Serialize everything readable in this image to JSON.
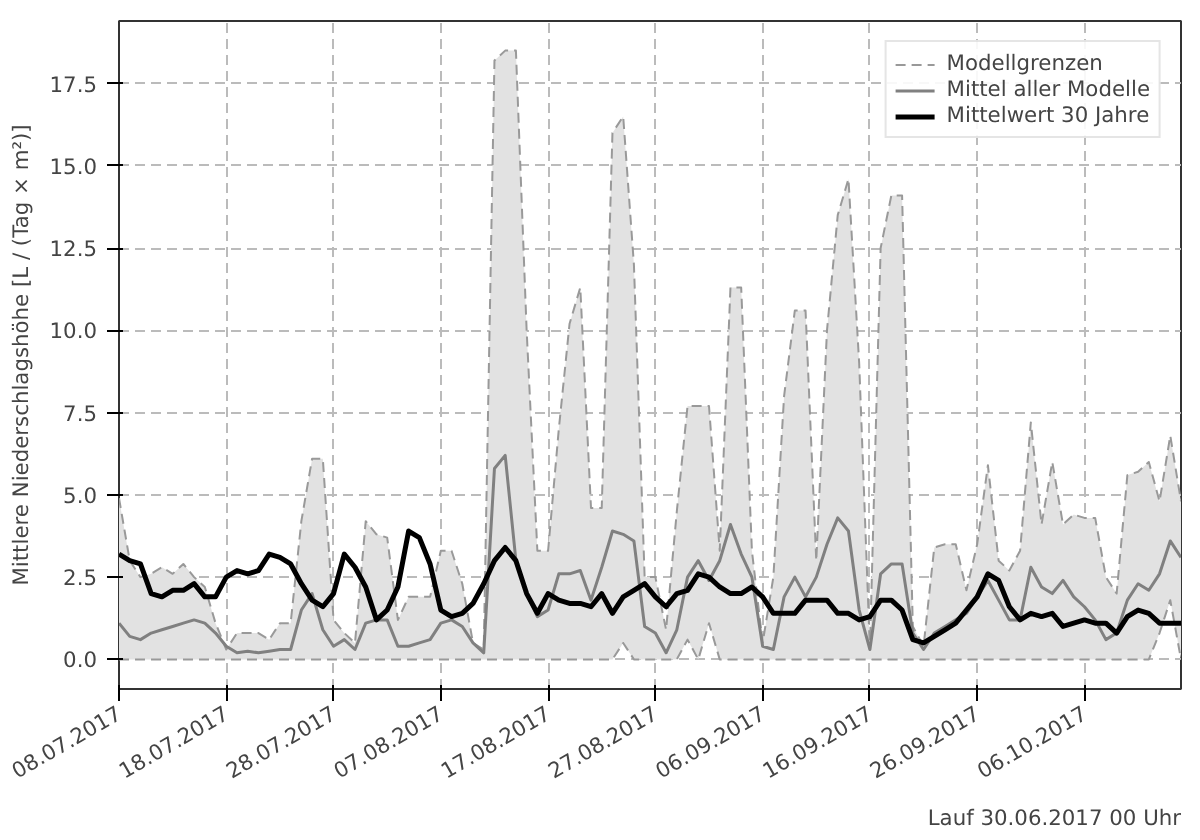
{
  "chart_data": {
    "type": "line",
    "ylabel": "Mittlere Niederschlagshöhe [L / (Tag × m²)]",
    "x": [
      "2017-07-08",
      "2017-07-09",
      "2017-07-10",
      "2017-07-11",
      "2017-07-12",
      "2017-07-13",
      "2017-07-14",
      "2017-07-15",
      "2017-07-16",
      "2017-07-17",
      "2017-07-18",
      "2017-07-19",
      "2017-07-20",
      "2017-07-21",
      "2017-07-22",
      "2017-07-23",
      "2017-07-24",
      "2017-07-25",
      "2017-07-26",
      "2017-07-27",
      "2017-07-28",
      "2017-07-29",
      "2017-07-30",
      "2017-07-31",
      "2017-08-01",
      "2017-08-02",
      "2017-08-03",
      "2017-08-04",
      "2017-08-05",
      "2017-08-06",
      "2017-08-07",
      "2017-08-08",
      "2017-08-09",
      "2017-08-10",
      "2017-08-11",
      "2017-08-12",
      "2017-08-13",
      "2017-08-14",
      "2017-08-15",
      "2017-08-16",
      "2017-08-17",
      "2017-08-18",
      "2017-08-19",
      "2017-08-20",
      "2017-08-21",
      "2017-08-22",
      "2017-08-23",
      "2017-08-24",
      "2017-08-25",
      "2017-08-26",
      "2017-08-27",
      "2017-08-28",
      "2017-08-29",
      "2017-08-30",
      "2017-08-31",
      "2017-09-01",
      "2017-09-02",
      "2017-09-03",
      "2017-09-04",
      "2017-09-05",
      "2017-09-06",
      "2017-09-07",
      "2017-09-08",
      "2017-09-09",
      "2017-09-10",
      "2017-09-11",
      "2017-09-12",
      "2017-09-13",
      "2017-09-14",
      "2017-09-15",
      "2017-09-16",
      "2017-09-17",
      "2017-09-18",
      "2017-09-19",
      "2017-09-20",
      "2017-09-21",
      "2017-09-22",
      "2017-09-23",
      "2017-09-24",
      "2017-09-25",
      "2017-09-26",
      "2017-09-27",
      "2017-09-28",
      "2017-09-29",
      "2017-09-30",
      "2017-10-01",
      "2017-10-02",
      "2017-10-03",
      "2017-10-04",
      "2017-10-05",
      "2017-10-06",
      "2017-10-07",
      "2017-10-08",
      "2017-10-09",
      "2017-10-10",
      "2017-10-11",
      "2017-10-12",
      "2017-10-13",
      "2017-10-14",
      "2017-10-15"
    ],
    "series": [
      {
        "name": "Modellgrenzen",
        "color": "#999999",
        "line_style": "dashed",
        "upper": [
          4.9,
          3.0,
          2.5,
          2.6,
          2.8,
          2.6,
          2.9,
          2.5,
          2.2,
          1.1,
          0.3,
          0.8,
          0.8,
          0.8,
          0.6,
          1.1,
          1.1,
          4.2,
          6.1,
          6.1,
          1.2,
          0.8,
          0.5,
          4.2,
          3.8,
          3.7,
          1.2,
          1.9,
          1.9,
          1.9,
          3.3,
          3.3,
          2.3,
          0.5,
          0.3,
          18.2,
          18.5,
          18.5,
          10.0,
          3.3,
          3.3,
          7.0,
          10.2,
          11.3,
          4.6,
          4.6,
          16.0,
          16.5,
          12.0,
          2.5,
          2.5,
          0.9,
          4.5,
          7.7,
          7.7,
          7.7,
          3.3,
          11.3,
          11.3,
          3.3,
          0.5,
          2.5,
          8.0,
          10.6,
          10.6,
          3.0,
          10.0,
          13.5,
          14.6,
          9.0,
          0.3,
          12.5,
          14.1,
          14.1,
          1.0,
          0.4,
          3.4,
          3.5,
          3.5,
          2.1,
          3.5,
          5.9,
          3.0,
          2.7,
          3.3,
          7.2,
          4.1,
          6.0,
          4.1,
          4.4,
          4.3,
          4.3,
          2.5,
          2.0,
          5.6,
          5.7,
          6.0,
          4.8,
          6.8,
          4.8
        ],
        "values": [
          4.9,
          3.0,
          2.5,
          2.6,
          2.8,
          2.6,
          2.9,
          2.5,
          2.2,
          1.1,
          0.3,
          0.8,
          0.8,
          0.8,
          0.6,
          1.1,
          1.1,
          4.2,
          6.1,
          6.1,
          1.2,
          0.8,
          0.5,
          4.2,
          3.8,
          3.7,
          1.2,
          1.9,
          1.9,
          1.9,
          3.3,
          3.3,
          2.3,
          0.5,
          0.3,
          18.2,
          18.5,
          18.5,
          10.0,
          3.3,
          3.3,
          7.0,
          10.2,
          11.3,
          4.6,
          4.6,
          16.0,
          16.5,
          12.0,
          2.5,
          2.5,
          0.9,
          4.5,
          7.7,
          7.7,
          7.7,
          3.3,
          11.3,
          11.3,
          3.3,
          0.5,
          2.5,
          8.0,
          10.6,
          10.6,
          3.0,
          10.0,
          13.5,
          14.6,
          9.0,
          0.3,
          12.5,
          14.1,
          14.1,
          1.0,
          0.4,
          3.4,
          3.5,
          3.5,
          2.1,
          3.5,
          5.9,
          3.0,
          2.7,
          3.3,
          7.2,
          4.1,
          6.0,
          4.1,
          4.4,
          4.3,
          4.3,
          2.5,
          2.0,
          5.6,
          5.7,
          6.0,
          4.8,
          6.8,
          4.8
        ],
        "lower": [
          0,
          0,
          0,
          0,
          0,
          0,
          0,
          0,
          0,
          0,
          0,
          0,
          0,
          0,
          0,
          0,
          0,
          0,
          0,
          0,
          0,
          0,
          0,
          0,
          0,
          0,
          0,
          0,
          0,
          0,
          0,
          0,
          0,
          0,
          0,
          0,
          0,
          0,
          0,
          0,
          0,
          0,
          0,
          0,
          0,
          0,
          0,
          0.5,
          0,
          0,
          0,
          0,
          0,
          0.6,
          0,
          1.1,
          0,
          0,
          0,
          0,
          0,
          0,
          0,
          0,
          0,
          0,
          0,
          0,
          0,
          0,
          0,
          0,
          0,
          0,
          0,
          0,
          0,
          0,
          0,
          0,
          0,
          0,
          0,
          0,
          0,
          0,
          0,
          0,
          0,
          0,
          0,
          0,
          0,
          0,
          0,
          0,
          0,
          0.8,
          1.8,
          0
        ]
      },
      {
        "color": "#999999",
        "line_style": "dashed",
        "values": [
          0,
          0,
          0,
          0,
          0,
          0,
          0,
          0,
          0,
          0,
          0,
          0,
          0,
          0,
          0,
          0,
          0,
          0,
          0,
          0,
          0,
          0,
          0,
          0,
          0,
          0,
          0,
          0,
          0,
          0,
          0,
          0,
          0,
          0,
          0,
          0,
          0,
          0,
          0,
          0,
          0,
          0,
          0,
          0,
          0,
          0,
          0,
          0.5,
          0,
          0,
          0,
          0,
          0,
          0.6,
          0,
          1.1,
          0,
          0,
          0,
          0,
          0,
          0,
          0,
          0,
          0,
          0,
          0,
          0,
          0,
          0,
          0,
          0,
          0,
          0,
          0,
          0,
          0,
          0,
          0,
          0,
          0,
          0,
          0,
          0,
          0,
          0,
          0,
          0,
          0,
          0,
          0,
          0,
          0,
          0,
          0,
          0,
          0,
          0.8,
          1.8,
          0
        ]
      },
      {
        "name": "Mittel aller Modelle",
        "color": "#808080",
        "values": [
          1.1,
          0.7,
          0.6,
          0.8,
          0.9,
          1.0,
          1.1,
          1.2,
          1.1,
          0.8,
          0.4,
          0.2,
          0.25,
          0.2,
          0.25,
          0.3,
          0.3,
          1.5,
          2.0,
          0.9,
          0.4,
          0.6,
          0.3,
          1.1,
          1.2,
          1.2,
          0.4,
          0.4,
          0.5,
          0.6,
          1.1,
          1.2,
          1.0,
          0.5,
          0.2,
          5.8,
          6.2,
          3.0,
          2.0,
          1.3,
          1.5,
          2.6,
          2.6,
          2.7,
          1.8,
          2.8,
          3.9,
          3.8,
          3.6,
          1.0,
          0.8,
          0.2,
          0.9,
          2.5,
          3.0,
          2.4,
          3.0,
          4.1,
          3.2,
          2.5,
          0.4,
          0.3,
          1.9,
          2.5,
          1.9,
          2.5,
          3.5,
          4.3,
          3.9,
          1.5,
          0.3,
          2.6,
          2.9,
          2.9,
          0.8,
          0.3,
          0.8,
          1.0,
          1.2,
          1.4,
          1.9,
          2.4,
          1.8,
          1.2,
          1.2,
          2.8,
          2.2,
          2.0,
          2.4,
          1.9,
          1.6,
          1.2,
          0.6,
          0.8,
          1.8,
          2.3,
          2.1,
          2.6,
          3.6,
          3.1
        ]
      },
      {
        "name": "Mittelwert 30 Jahre",
        "color": "#000000",
        "values": [
          3.2,
          3.0,
          2.9,
          2.0,
          1.9,
          2.1,
          2.1,
          2.3,
          1.9,
          1.9,
          2.5,
          2.7,
          2.6,
          2.7,
          3.2,
          3.1,
          2.9,
          2.3,
          1.8,
          1.6,
          2.0,
          3.2,
          2.8,
          2.2,
          1.2,
          1.5,
          2.2,
          3.9,
          3.7,
          2.9,
          1.5,
          1.3,
          1.4,
          1.7,
          2.3,
          3.0,
          3.4,
          3.0,
          2.0,
          1.4,
          2.0,
          1.8,
          1.7,
          1.7,
          1.6,
          2.0,
          1.4,
          1.9,
          2.1,
          2.3,
          1.9,
          1.6,
          2.0,
          2.1,
          2.6,
          2.5,
          2.2,
          2.0,
          2.0,
          2.2,
          1.9,
          1.4,
          1.4,
          1.4,
          1.8,
          1.8,
          1.8,
          1.4,
          1.4,
          1.2,
          1.3,
          1.8,
          1.8,
          1.5,
          0.6,
          0.5,
          0.7,
          0.9,
          1.1,
          1.5,
          1.9,
          2.6,
          2.4,
          1.6,
          1.2,
          1.4,
          1.3,
          1.4,
          1.0,
          1.1,
          1.2,
          1.1,
          1.1,
          0.8,
          1.3,
          1.5,
          1.4,
          1.1,
          1.1,
          1.1
        ]
      }
    ],
    "xlim": [
      "2017-07-08",
      "2017-10-15"
    ],
    "xticks": [
      {
        "value": "2017-07-08",
        "label": "08.07.2017"
      },
      {
        "value": "2017-07-18",
        "label": "18.07.2017"
      },
      {
        "value": "2017-07-28",
        "label": "28.07.2017"
      },
      {
        "value": "2017-08-07",
        "label": "07.08.2017"
      },
      {
        "value": "2017-08-17",
        "label": "17.08.2017"
      },
      {
        "value": "2017-08-27",
        "label": "27.08.2017"
      },
      {
        "value": "2017-09-06",
        "label": "06.09.2017"
      },
      {
        "value": "2017-09-16",
        "label": "16.09.2017"
      },
      {
        "value": "2017-09-26",
        "label": "26.09.2017"
      },
      {
        "value": "2017-10-06",
        "label": "06.10.2017"
      }
    ],
    "ylim": [
      -0.9,
      19.4
    ],
    "yticks": [
      {
        "value": 0,
        "label": "0.0"
      },
      {
        "value": 2.5,
        "label": "2.5"
      },
      {
        "value": 5,
        "label": "5.0"
      },
      {
        "value": 7.5,
        "label": "7.5"
      },
      {
        "value": 10,
        "label": "10.0"
      },
      {
        "value": 12.5,
        "label": "12.5"
      },
      {
        "value": 15,
        "label": "15.0"
      },
      {
        "value": 17.5,
        "label": "17.5"
      }
    ],
    "grid": true,
    "legend": "top right",
    "annotations": [
      "Lauf 30.06.2017 00 Uhr"
    ]
  }
}
